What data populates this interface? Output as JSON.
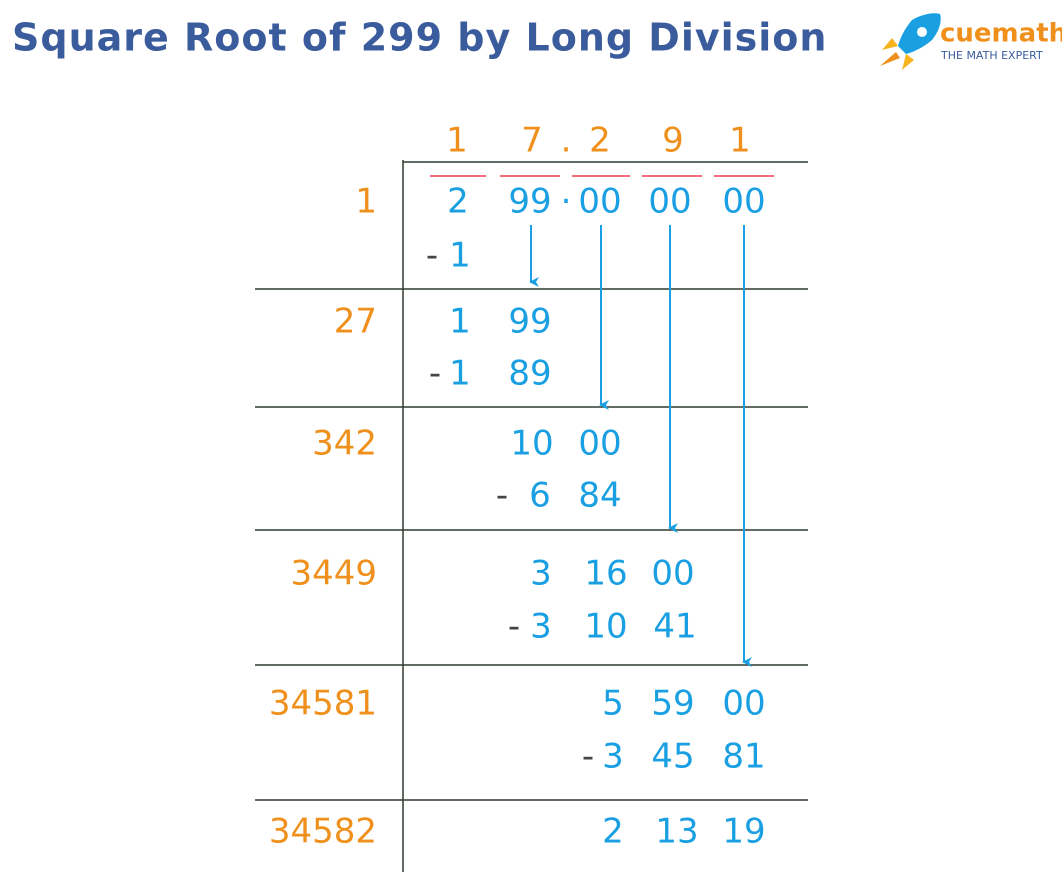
{
  "header": {
    "title": "Square Root of 299 by Long Division",
    "brand": "cuemath",
    "tagline": "THE MATH EXPERT"
  },
  "quotient": [
    "1",
    "7",
    ".",
    "2",
    "9",
    "1"
  ],
  "dividend": [
    "2",
    "99",
    "·",
    "00",
    "00",
    "00"
  ],
  "divisors": [
    "1",
    "27",
    "342",
    "3449",
    "34581",
    "34582"
  ],
  "work": [
    [
      "-",
      "1"
    ],
    [
      "1",
      "99"
    ],
    [
      "-",
      "1",
      "89"
    ],
    [
      "10",
      "00"
    ],
    [
      "-",
      "6",
      "84"
    ],
    [
      "3",
      "16",
      "00"
    ],
    [
      "-",
      "3",
      "10",
      "41"
    ],
    [
      "5",
      "59",
      "00"
    ],
    [
      "-",
      "3",
      "45",
      "81"
    ],
    [
      "2",
      "13",
      "19"
    ]
  ]
}
